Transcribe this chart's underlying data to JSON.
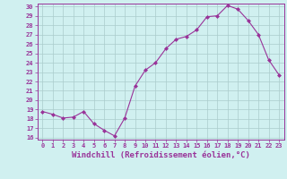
{
  "x": [
    0,
    1,
    2,
    3,
    4,
    5,
    6,
    7,
    8,
    9,
    10,
    11,
    12,
    13,
    14,
    15,
    16,
    17,
    18,
    19,
    20,
    21,
    22,
    23
  ],
  "y": [
    18.8,
    18.5,
    18.1,
    18.2,
    18.8,
    17.5,
    16.8,
    16.2,
    18.1,
    21.5,
    23.2,
    24.0,
    25.5,
    26.5,
    26.8,
    27.5,
    28.9,
    29.0,
    30.1,
    29.7,
    28.5,
    27.0,
    24.3,
    22.7
  ],
  "line_color": "#993399",
  "marker": "D",
  "marker_size": 2,
  "bg_color": "#d0f0f0",
  "grid_color": "#aacccc",
  "axis_color": "#993399",
  "xlabel": "Windchill (Refroidissement éolien,°C)",
  "ylim": [
    16,
    30
  ],
  "xlim": [
    -0.5,
    23.5
  ],
  "yticks": [
    16,
    17,
    18,
    19,
    20,
    21,
    22,
    23,
    24,
    25,
    26,
    27,
    28,
    29,
    30
  ],
  "xticks": [
    0,
    1,
    2,
    3,
    4,
    5,
    6,
    7,
    8,
    9,
    10,
    11,
    12,
    13,
    14,
    15,
    16,
    17,
    18,
    19,
    20,
    21,
    22,
    23
  ],
  "tick_fontsize": 5.0,
  "xlabel_fontsize": 6.5,
  "ylabel_fontsize": 5.5
}
